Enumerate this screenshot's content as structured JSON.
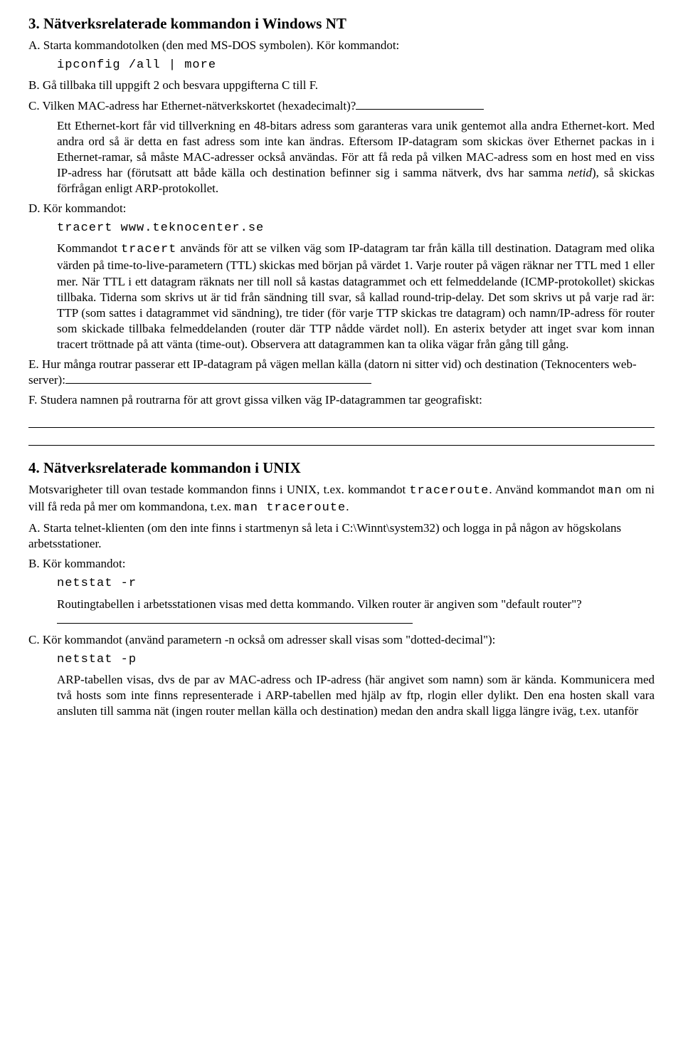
{
  "section3": {
    "heading": "3.  Nätverksrelaterade kommandon i Windows NT",
    "A": "A. Starta kommandotolken (den med MS-DOS symbolen). Kör kommandot:",
    "A_cmd": "ipconfig /all | more",
    "B": "B. Gå tillbaka till uppgift 2 och besvara uppgifterna C till F.",
    "C_prefix": "C. Vilken MAC-adress har Ethernet-nätverkskortet (hexadecimalt)?",
    "C_para1": "Ett Ethernet-kort får vid tillverkning en 48-bitars adress som garanteras vara unik gentemot alla andra Ethernet-kort. Med andra ord så är detta en fast adress som inte kan ändras. Eftersom IP-datagram som skickas över Ethernet packas in i Ethernet-ramar, så måste MAC-adresser också användas. För att få reda på vilken MAC-adress som en host med en viss IP-adress har (förutsatt att både källa och destination befinner sig i samma nätverk, dvs har samma ",
    "C_netid": "netid",
    "C_para1_tail": "), så skickas förfrågan enligt ARP-protokollet.",
    "D": "D. Kör kommandot:",
    "D_cmd": "tracert  www.teknocenter.se",
    "D_para_pre": "Kommandot ",
    "D_cmd_inline": "tracert",
    "D_para": " används för att se vilken väg som IP-datagram tar från källa till destination. Datagram med olika värden på time-to-live-parametern (TTL) skickas med början på värdet 1. Varje router på vägen räknar ner TTL med 1 eller mer. När TTL i ett datagram räknats ner till noll så kastas datagrammet och ett felmeddelande (ICMP-protokollet) skickas tillbaka. Tiderna som skrivs ut är tid från sändning till svar, så kallad round-trip-delay. Det som skrivs ut på varje rad är: TTP (som sattes i datagrammet vid sändning), tre tider (för varje TTP skickas tre datagram) och namn/IP-adress för router som skickade tillbaka felmeddelanden (router där TTP nådde värdet noll). En asterix betyder att inget svar kom innan tracert tröttnade på att vänta (time-out). Observera att datagrammen kan ta olika vägar från gång till gång.",
    "E": "E. Hur många routrar passerar ett IP-datagram på vägen mellan källa (datorn ni sitter vid) och destination (Teknocenters web-server):",
    "F": "F. Studera namnen på routrarna för att grovt gissa vilken väg IP-datagrammen tar geografiskt:"
  },
  "section4": {
    "heading": "4.  Nätverksrelaterade kommandon i UNIX",
    "intro_pre": "Motsvarigheter till ovan testade kommandon finns i UNIX, t.ex. kommandot ",
    "intro_cmd1": "traceroute",
    "intro_mid": ". Använd kommandot ",
    "intro_cmd2": "man",
    "intro_mid2": " om ni vill få reda på mer om kommandona, t.ex. ",
    "intro_cmd3": "man traceroute",
    "intro_tail": ".",
    "A": "A. Starta telnet-klienten (om den inte finns i startmenyn så leta i C:\\Winnt\\system32) och logga in på någon av högskolans arbetsstationer.",
    "B": "B. Kör kommandot:",
    "B_cmd": "netstat -r",
    "B_para": "Routingtabellen i arbetsstationen visas med detta kommando. Vilken router är angiven som \"default router\"?",
    "C": "C. Kör kommandot (använd parametern -n också om adresser skall visas som \"dotted-decimal\"):",
    "C_cmd": "netstat -p",
    "C_para": "ARP-tabellen visas, dvs de par av MAC-adress och IP-adress (här angivet som namn) som är kända. Kommunicera med två hosts som inte finns representerade i ARP-tabellen med hjälp av ftp, rlogin eller dylikt. Den ena hosten skall vara ansluten till samma nät (ingen router mellan källa och destination) medan den andra skall ligga längre iväg, t.ex. utanför"
  }
}
